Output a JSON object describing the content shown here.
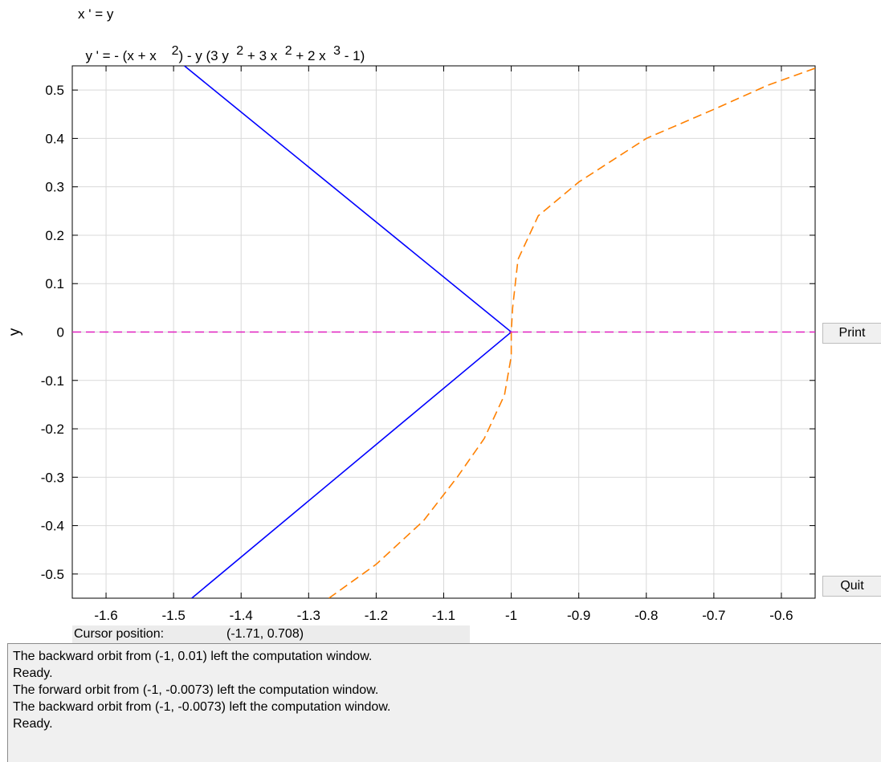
{
  "equations": {
    "line1": "x ' = y",
    "line2_parts": [
      "y ' = - (x + x    ",
      "2",
      ") - y (3 y  ",
      "2",
      " + 3 x  ",
      "2",
      " + 2 x  ",
      "3",
      " - 1)"
    ]
  },
  "chart_data": {
    "type": "line",
    "xlabel": "",
    "ylabel": "y",
    "xlim": [
      -1.65,
      -0.55
    ],
    "ylim": [
      -0.55,
      0.55
    ],
    "grid": true,
    "x_ticks": [
      "-1.6",
      "-1.5",
      "-1.4",
      "-1.3",
      "-1.2",
      "-1.1",
      "-1",
      "-0.9",
      "-0.8",
      "-0.7",
      "-0.6"
    ],
    "x_tick_values": [
      -1.6,
      -1.5,
      -1.4,
      -1.3,
      -1.2,
      -1.1,
      -1.0,
      -0.9,
      -0.8,
      -0.7,
      -0.6
    ],
    "y_ticks": [
      "0.5",
      "0.4",
      "0.3",
      "0.2",
      "0.1",
      "0",
      "-0.1",
      "-0.2",
      "-0.3",
      "-0.4",
      "-0.5"
    ],
    "y_tick_values": [
      0.5,
      0.4,
      0.3,
      0.2,
      0.1,
      0,
      -0.1,
      -0.2,
      -0.3,
      -0.4,
      -0.5
    ],
    "series": [
      {
        "color": "#0000ff",
        "style": "solid",
        "points": [
          [
            -1.484,
            0.55
          ],
          [
            -1.0,
            0.0
          ],
          [
            -1.473,
            -0.55
          ]
        ]
      },
      {
        "color": "#ff8000",
        "style": "dashed",
        "points": [
          [
            -1.27,
            -0.55
          ],
          [
            -1.2,
            -0.48
          ],
          [
            -1.13,
            -0.39
          ],
          [
            -1.08,
            -0.3
          ],
          [
            -1.04,
            -0.22
          ],
          [
            -1.01,
            -0.13
          ],
          [
            -1.0,
            -0.05
          ],
          [
            -1.0,
            0.0
          ],
          [
            -0.998,
            0.05
          ],
          [
            -0.99,
            0.15
          ],
          [
            -0.96,
            0.24
          ],
          [
            -0.9,
            0.31
          ],
          [
            -0.8,
            0.4
          ],
          [
            -0.7,
            0.46
          ],
          [
            -0.62,
            0.51
          ],
          [
            -0.55,
            0.545
          ]
        ]
      },
      {
        "color": "#e020c0",
        "style": "dashed",
        "points": [
          [
            -1.65,
            0.0
          ],
          [
            -0.55,
            0.0
          ]
        ]
      }
    ]
  },
  "buttons": {
    "print": "Print",
    "quit": "Quit"
  },
  "cursor": {
    "label": "Cursor position:",
    "value": "(-1.71, 0.708)"
  },
  "log": [
    "The backward orbit from (-1, 0.01) left the computation window.",
    "Ready.",
    "The forward orbit from (-1, -0.0073) left the computation window.",
    "The backward orbit from (-1, -0.0073) left the computation window.",
    "Ready."
  ]
}
